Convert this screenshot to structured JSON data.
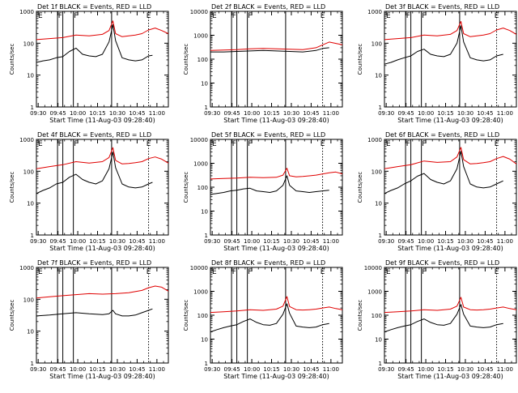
{
  "figure": {
    "common": {
      "type": "line",
      "xlabel": "Start Time (11-Aug-03 09:28:40)",
      "ylabel": "Counts/sec",
      "x_tick_labels": [
        "09:30",
        "09:45",
        "10:00",
        "10:15",
        "10:30",
        "10:45",
        "11:00"
      ],
      "x_range_minutes": [
        0,
        100
      ],
      "yscale": "log",
      "solid_vlines_minutes": [
        16,
        20,
        28,
        57
      ],
      "dotted_vline_minutes": 85,
      "colors": {
        "events": "#000000",
        "lld": "#e00000"
      }
    }
  },
  "chart_data": [
    {
      "type": "line",
      "detector": 1,
      "title": "Det 1f BLACK = Events, RED = LLD",
      "xlabel": "Start Time (11-Aug-03 09:28:40)",
      "ylabel": "Counts/sec",
      "ylim": [
        1,
        1000
      ],
      "ytick_labels": [
        "1",
        "10",
        "100",
        "1000"
      ],
      "markers": [
        "E",
        "F",
        "F",
        "E"
      ],
      "series": [
        {
          "name": "Events",
          "color": "#000000",
          "x": [
            0,
            5,
            10,
            15,
            20,
            25,
            30,
            35,
            40,
            45,
            50,
            55,
            58,
            60,
            65,
            70,
            75,
            80,
            85,
            88
          ],
          "y": [
            25,
            28,
            30,
            35,
            38,
            55,
            70,
            45,
            40,
            38,
            45,
            110,
            380,
            120,
            35,
            30,
            28,
            30,
            40,
            42
          ]
        },
        {
          "name": "LLD",
          "color": "#e00000",
          "x": [
            0,
            10,
            20,
            30,
            40,
            50,
            55,
            58,
            60,
            65,
            70,
            75,
            80,
            85,
            90,
            95,
            100
          ],
          "y": [
            130,
            140,
            150,
            180,
            170,
            190,
            250,
            500,
            200,
            160,
            170,
            180,
            200,
            260,
            300,
            250,
            200
          ]
        }
      ]
    },
    {
      "type": "line",
      "detector": 2,
      "title": "Det 2f BLACK = Events, RED = LLD",
      "xlabel": "Start Time (11-Aug-03 09:28:40)",
      "ylabel": "Counts/sec",
      "ylim": [
        1,
        10000
      ],
      "ytick_labels": [
        "1",
        "10",
        "100",
        "1000",
        "10000"
      ],
      "markers": [
        "E",
        "F",
        "F",
        "E"
      ],
      "series": [
        {
          "name": "Events",
          "color": "#000000",
          "x": [
            0,
            10,
            20,
            30,
            40,
            50,
            60,
            70,
            80,
            85,
            90
          ],
          "y": [
            200,
            200,
            210,
            220,
            230,
            220,
            210,
            200,
            230,
            280,
            300
          ]
        },
        {
          "name": "LLD",
          "color": "#e00000",
          "x": [
            0,
            10,
            20,
            30,
            40,
            50,
            60,
            70,
            80,
            90,
            100
          ],
          "y": [
            230,
            240,
            250,
            270,
            280,
            270,
            260,
            250,
            300,
            520,
            400
          ]
        }
      ]
    },
    {
      "type": "line",
      "detector": 3,
      "title": "Det 3f BLACK = Events, RED = LLD",
      "xlabel": "Start Time (11-Aug-03 09:28:40)",
      "ylabel": "Counts/sec",
      "ylim": [
        1,
        1000
      ],
      "ytick_labels": [
        "1",
        "10",
        "100",
        "1000"
      ],
      "markers": [
        "E",
        "F",
        "F",
        "E"
      ],
      "series": [
        {
          "name": "Events",
          "color": "#000000",
          "x": [
            0,
            5,
            10,
            15,
            20,
            25,
            30,
            35,
            40,
            45,
            50,
            55,
            58,
            60,
            65,
            70,
            75,
            80,
            85,
            90
          ],
          "y": [
            22,
            25,
            30,
            35,
            40,
            55,
            65,
            45,
            40,
            38,
            45,
            100,
            350,
            110,
            35,
            30,
            28,
            30,
            40,
            45
          ]
        },
        {
          "name": "LLD",
          "color": "#e00000",
          "x": [
            0,
            10,
            20,
            30,
            40,
            50,
            55,
            58,
            60,
            65,
            70,
            75,
            80,
            85,
            90,
            95,
            100
          ],
          "y": [
            130,
            140,
            150,
            180,
            170,
            190,
            250,
            480,
            200,
            160,
            170,
            180,
            200,
            260,
            300,
            250,
            190
          ]
        }
      ]
    },
    {
      "type": "line",
      "detector": 4,
      "title": "Det 4f BLACK = Events, RED = LLD",
      "xlabel": "Start Time (11-Aug-03 09:28:40)",
      "ylabel": "Counts/sec",
      "ylim": [
        1,
        1000
      ],
      "ytick_labels": [
        "1",
        "10",
        "100",
        "1000"
      ],
      "markers": [
        "E",
        "F",
        "F",
        "E"
      ],
      "series": [
        {
          "name": "Events",
          "color": "#000000",
          "x": [
            0,
            5,
            10,
            15,
            20,
            25,
            30,
            35,
            40,
            45,
            50,
            55,
            58,
            60,
            65,
            70,
            75,
            80,
            85,
            88
          ],
          "y": [
            20,
            25,
            30,
            40,
            45,
            65,
            80,
            55,
            45,
            40,
            50,
            120,
            400,
            130,
            40,
            32,
            30,
            32,
            40,
            45
          ]
        },
        {
          "name": "LLD",
          "color": "#e00000",
          "x": [
            0,
            10,
            20,
            30,
            40,
            50,
            55,
            58,
            60,
            65,
            70,
            75,
            80,
            85,
            90,
            95,
            100
          ],
          "y": [
            120,
            140,
            160,
            200,
            180,
            200,
            270,
            550,
            220,
            170,
            175,
            185,
            200,
            250,
            280,
            240,
            180
          ]
        }
      ]
    },
    {
      "type": "line",
      "detector": 5,
      "title": "Det 5f BLACK = Events, RED = LLD",
      "xlabel": "Start Time (11-Aug-03 09:28:40)",
      "ylabel": "Counts/sec",
      "ylim": [
        1,
        10000
      ],
      "ytick_labels": [
        "1",
        "10",
        "100",
        "1000",
        "10000"
      ],
      "markers": [
        "E",
        "F",
        "F",
        "E"
      ],
      "series": [
        {
          "name": "Events",
          "color": "#000000",
          "x": [
            0,
            5,
            10,
            15,
            20,
            25,
            30,
            35,
            40,
            45,
            50,
            55,
            58,
            60,
            65,
            70,
            75,
            80,
            85,
            90
          ],
          "y": [
            50,
            55,
            60,
            70,
            75,
            85,
            90,
            70,
            65,
            60,
            70,
            120,
            300,
            120,
            70,
            65,
            60,
            65,
            70,
            75
          ]
        },
        {
          "name": "LLD",
          "color": "#e00000",
          "x": [
            0,
            10,
            20,
            30,
            40,
            50,
            55,
            58,
            60,
            65,
            70,
            80,
            90,
            95,
            100
          ],
          "y": [
            220,
            230,
            240,
            260,
            250,
            260,
            320,
            620,
            300,
            270,
            280,
            320,
            400,
            430,
            360
          ]
        }
      ]
    },
    {
      "type": "line",
      "detector": 6,
      "title": "Det 6f BLACK = Events, RED = LLD",
      "xlabel": "Start Time (11-Aug-03 09:28:40)",
      "ylabel": "Counts/sec",
      "ylim": [
        1,
        1000
      ],
      "ytick_labels": [
        "1",
        "10",
        "100",
        "1000"
      ],
      "markers": [
        "E",
        "F",
        "F",
        "E"
      ],
      "series": [
        {
          "name": "Events",
          "color": "#000000",
          "x": [
            0,
            5,
            10,
            15,
            20,
            25,
            30,
            35,
            40,
            45,
            50,
            55,
            58,
            60,
            65,
            70,
            75,
            80,
            85,
            90
          ],
          "y": [
            20,
            25,
            30,
            40,
            50,
            70,
            85,
            55,
            45,
            40,
            50,
            120,
            420,
            140,
            40,
            32,
            30,
            32,
            40,
            50
          ]
        },
        {
          "name": "LLD",
          "color": "#e00000",
          "x": [
            0,
            10,
            20,
            30,
            40,
            50,
            55,
            58,
            60,
            65,
            70,
            75,
            80,
            85,
            90,
            95,
            100
          ],
          "y": [
            120,
            140,
            160,
            210,
            190,
            200,
            280,
            560,
            230,
            170,
            175,
            185,
            200,
            250,
            290,
            240,
            170
          ]
        }
      ]
    },
    {
      "type": "line",
      "detector": 7,
      "title": "Det 7f BLACK = Events, RED = LLD",
      "xlabel": "Start Time (11-Aug-03 09:28:40)",
      "ylabel": "Counts/sec",
      "ylim": [
        1,
        1000
      ],
      "ytick_labels": [
        "1",
        "10",
        "100",
        "1000"
      ],
      "markers": [
        "E",
        "F",
        "F",
        "E"
      ],
      "series": [
        {
          "name": "Events",
          "color": "#000000",
          "x": [
            0,
            10,
            20,
            30,
            40,
            50,
            55,
            58,
            60,
            65,
            70,
            75,
            80,
            85,
            88
          ],
          "y": [
            30,
            32,
            35,
            38,
            35,
            33,
            35,
            45,
            35,
            30,
            30,
            32,
            38,
            45,
            50
          ]
        },
        {
          "name": "LLD",
          "color": "#e00000",
          "x": [
            0,
            10,
            20,
            30,
            40,
            50,
            60,
            70,
            80,
            85,
            90,
            95,
            100
          ],
          "y": [
            110,
            120,
            130,
            140,
            150,
            145,
            150,
            160,
            190,
            230,
            260,
            240,
            180
          ]
        }
      ]
    },
    {
      "type": "line",
      "detector": 8,
      "title": "Det 8f BLACK = Events, RED = LLD",
      "xlabel": "Start Time (11-Aug-03 09:28:40)",
      "ylabel": "Counts/sec",
      "ylim": [
        1,
        10000
      ],
      "ytick_labels": [
        "1",
        "10",
        "100",
        "1000",
        "10000"
      ],
      "markers": [
        "E",
        "F",
        "F",
        "E"
      ],
      "series": [
        {
          "name": "Events",
          "color": "#000000",
          "x": [
            0,
            5,
            10,
            15,
            20,
            25,
            30,
            35,
            40,
            45,
            50,
            55,
            58,
            60,
            65,
            70,
            75,
            80,
            85,
            90
          ],
          "y": [
            20,
            25,
            30,
            35,
            40,
            55,
            70,
            50,
            40,
            38,
            45,
            110,
            300,
            120,
            35,
            32,
            30,
            32,
            40,
            45
          ]
        },
        {
          "name": "LLD",
          "color": "#e00000",
          "x": [
            0,
            10,
            20,
            30,
            40,
            50,
            55,
            58,
            60,
            65,
            70,
            75,
            80,
            85,
            90,
            95,
            100
          ],
          "y": [
            130,
            140,
            150,
            170,
            160,
            180,
            240,
            600,
            230,
            170,
            165,
            170,
            180,
            200,
            220,
            190,
            170
          ]
        }
      ]
    },
    {
      "type": "line",
      "detector": 9,
      "title": "Det 9f BLACK = Events, RED = LLD",
      "xlabel": "Start Time (11-Aug-03 09:28:40)",
      "ylabel": "Counts/sec",
      "ylim": [
        1,
        10000
      ],
      "ytick_labels": [
        "1",
        "10",
        "100",
        "1000",
        "10000"
      ],
      "markers": [
        "E",
        "F",
        "F",
        "E"
      ],
      "series": [
        {
          "name": "Events",
          "color": "#000000",
          "x": [
            0,
            5,
            10,
            15,
            20,
            25,
            30,
            35,
            40,
            45,
            50,
            55,
            58,
            60,
            65,
            70,
            75,
            80,
            85,
            90
          ],
          "y": [
            20,
            25,
            30,
            35,
            40,
            55,
            70,
            50,
            40,
            38,
            45,
            110,
            280,
            110,
            35,
            32,
            30,
            32,
            40,
            45
          ]
        },
        {
          "name": "LLD",
          "color": "#e00000",
          "x": [
            0,
            10,
            20,
            30,
            40,
            50,
            55,
            58,
            60,
            65,
            70,
            75,
            80,
            85,
            90,
            95,
            100
          ],
          "y": [
            130,
            140,
            150,
            170,
            160,
            180,
            240,
            560,
            220,
            170,
            165,
            170,
            180,
            200,
            220,
            190,
            170
          ]
        }
      ]
    }
  ]
}
